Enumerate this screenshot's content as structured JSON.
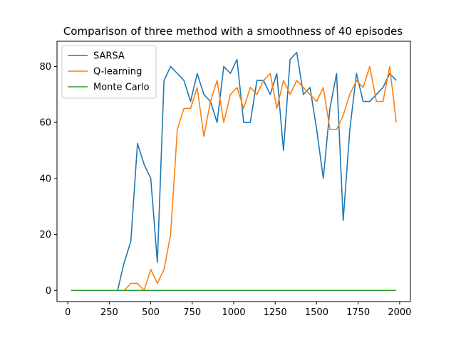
{
  "chart_data": {
    "type": "line",
    "title": "Comparison of three method with a smoothness of 40 episodes",
    "xlabel": "",
    "ylabel": "",
    "xlim": [
      -65,
      2065
    ],
    "ylim": [
      -4,
      89
    ],
    "xticks": [
      0,
      250,
      500,
      750,
      1000,
      1250,
      1500,
      1750,
      2000
    ],
    "yticks": [
      0,
      20,
      40,
      60,
      80
    ],
    "grid": false,
    "legend_position": "top-left",
    "series": [
      {
        "name": "SARSA",
        "color": "#1f77b4",
        "x": [
          20,
          60,
          100,
          140,
          180,
          220,
          260,
          300,
          340,
          380,
          420,
          460,
          500,
          540,
          580,
          620,
          660,
          700,
          740,
          780,
          820,
          860,
          900,
          940,
          980,
          1020,
          1060,
          1100,
          1140,
          1180,
          1220,
          1260,
          1300,
          1340,
          1380,
          1420,
          1460,
          1500,
          1540,
          1580,
          1620,
          1660,
          1700,
          1740,
          1780,
          1820,
          1860,
          1900,
          1940,
          1980
        ],
        "values": [
          0,
          0,
          0,
          0,
          0,
          0,
          0,
          0,
          10,
          17.5,
          52.5,
          45,
          40,
          10,
          75,
          80,
          77.5,
          75,
          67.5,
          77.5,
          70,
          67.5,
          60,
          80,
          77.5,
          82.5,
          60,
          60,
          75,
          75,
          70,
          77.5,
          50,
          82.5,
          85,
          70,
          72.5,
          57.5,
          40,
          65,
          77.5,
          25,
          57.5,
          77.5,
          67.5,
          67.5,
          70,
          72.5,
          77.5,
          75
        ]
      },
      {
        "name": "Q-learning",
        "color": "#ff7f0e",
        "x": [
          20,
          60,
          100,
          140,
          180,
          220,
          260,
          300,
          340,
          380,
          420,
          460,
          500,
          540,
          580,
          620,
          660,
          700,
          740,
          780,
          820,
          860,
          900,
          940,
          980,
          1020,
          1060,
          1100,
          1140,
          1180,
          1220,
          1260,
          1300,
          1340,
          1380,
          1420,
          1460,
          1500,
          1540,
          1580,
          1620,
          1660,
          1700,
          1740,
          1780,
          1820,
          1860,
          1900,
          1940,
          1980
        ],
        "values": [
          0,
          0,
          0,
          0,
          0,
          0,
          0,
          0,
          0,
          2.5,
          2.5,
          0,
          7.5,
          2.5,
          7.5,
          20,
          57.5,
          65,
          65,
          72.5,
          55,
          67.5,
          75,
          60,
          70,
          72.5,
          65,
          72.5,
          70,
          75,
          77.5,
          65,
          75,
          70,
          75,
          72.5,
          70,
          67.5,
          72.5,
          57.5,
          57.5,
          62.5,
          70,
          75,
          72.5,
          80,
          67.5,
          67.5,
          80,
          60
        ]
      },
      {
        "name": "Monte Carlo",
        "color": "#2ca02c",
        "x": [
          20,
          1980
        ],
        "values": [
          0,
          0
        ]
      }
    ]
  }
}
